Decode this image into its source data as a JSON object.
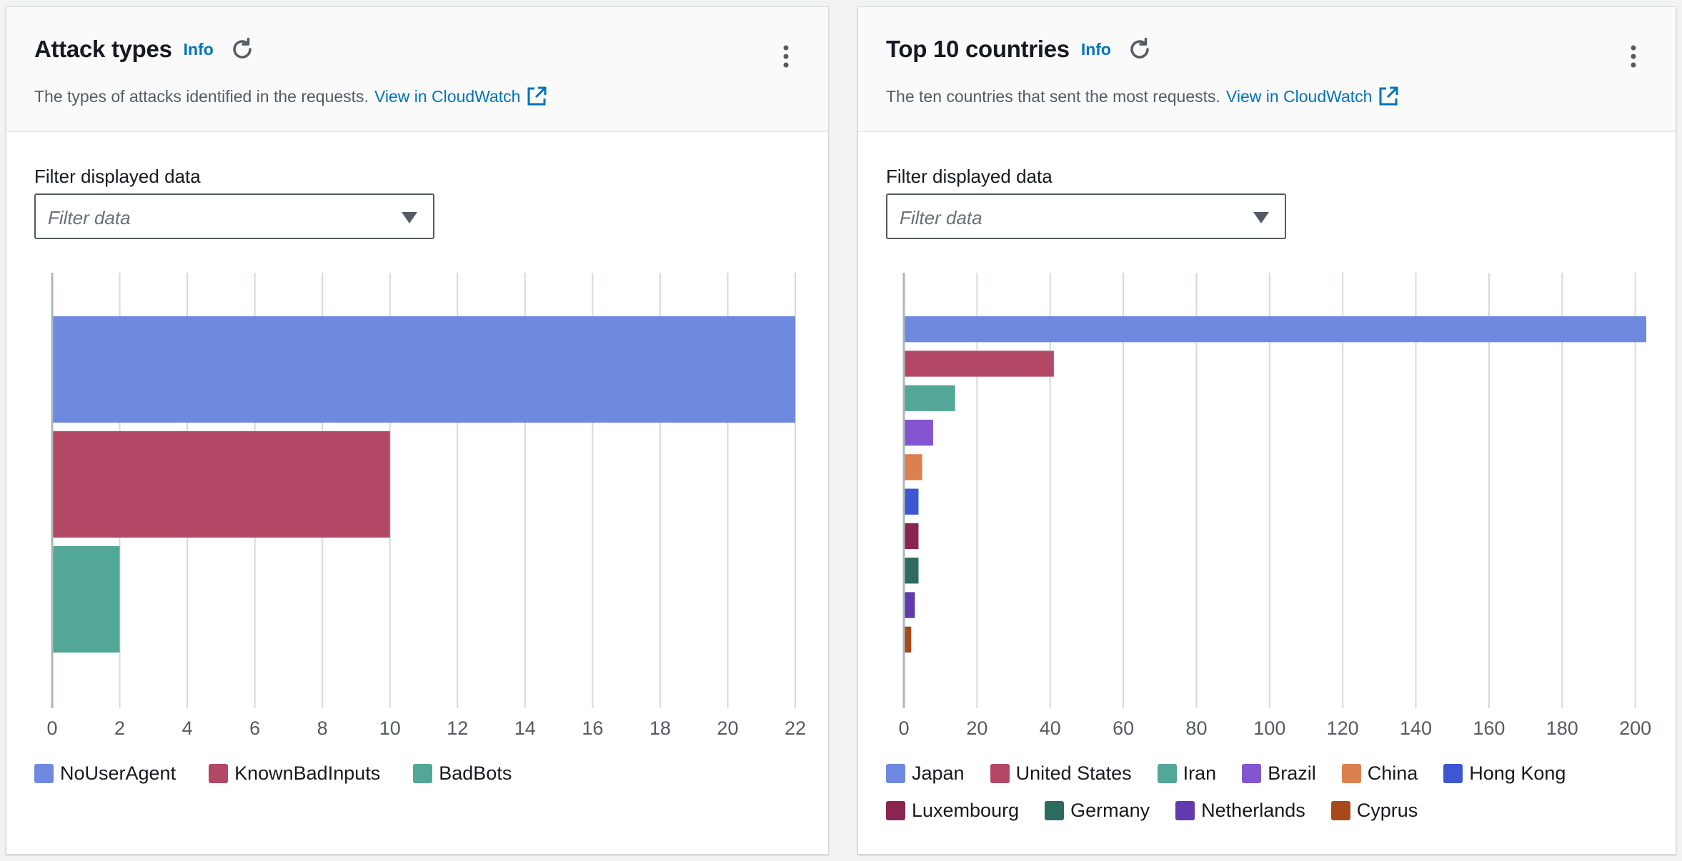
{
  "cards": [
    {
      "title": "Attack types",
      "info_label": "Info",
      "description": "The types of attacks identified in the requests.",
      "link_label": "View in CloudWatch",
      "filter_label": "Filter displayed data",
      "filter_placeholder": "Filter data",
      "chart_data": {
        "type": "bar",
        "orientation": "horizontal",
        "categories": [
          "NoUserAgent",
          "KnownBadInputs",
          "BadBots"
        ],
        "values": [
          22,
          10,
          2
        ],
        "colors": [
          "#7089e0",
          "#b24766",
          "#53a797"
        ],
        "xlim": [
          0,
          22
        ],
        "xticks": [
          0,
          2,
          4,
          6,
          8,
          10,
          12,
          14,
          16,
          18,
          20,
          22
        ],
        "grid": true,
        "legend_position": "bottom"
      }
    },
    {
      "title": "Top 10 countries",
      "info_label": "Info",
      "description": "The ten countries that sent the most requests.",
      "link_label": "View in CloudWatch",
      "filter_label": "Filter displayed data",
      "filter_placeholder": "Filter data",
      "chart_data": {
        "type": "bar",
        "orientation": "horizontal",
        "categories": [
          "Japan",
          "United States",
          "Iran",
          "Brazil",
          "China",
          "Hong Kong",
          "Luxembourg",
          "Germany",
          "Netherlands",
          "Cyprus"
        ],
        "values": [
          203,
          41,
          14,
          8,
          5,
          4,
          4,
          4,
          3,
          2
        ],
        "colors": [
          "#7089e0",
          "#b24766",
          "#53a797",
          "#8355d0",
          "#dc8050",
          "#3d57d0",
          "#8a2550",
          "#2d6b5f",
          "#613aae",
          "#a8491c"
        ],
        "xlim": [
          0,
          203
        ],
        "xticks": [
          0,
          20,
          40,
          60,
          80,
          100,
          120,
          140,
          160,
          180,
          200
        ],
        "grid": true,
        "legend_position": "bottom"
      }
    }
  ]
}
